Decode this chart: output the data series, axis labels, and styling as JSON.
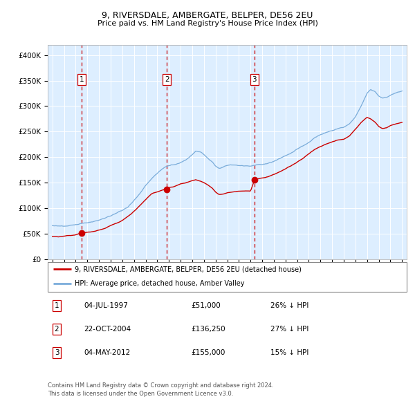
{
  "title1": "9, RIVERSDALE, AMBERGATE, BELPER, DE56 2EU",
  "title2": "Price paid vs. HM Land Registry's House Price Index (HPI)",
  "legend_line1": "9, RIVERSDALE, AMBERGATE, BELPER, DE56 2EU (detached house)",
  "legend_line2": "HPI: Average price, detached house, Amber Valley",
  "footer1": "Contains HM Land Registry data © Crown copyright and database right 2024.",
  "footer2": "This data is licensed under the Open Government Licence v3.0.",
  "sale_dates": [
    "04-JUL-1997",
    "22-OCT-2004",
    "04-MAY-2012"
  ],
  "sale_prices": [
    51000,
    136250,
    155000
  ],
  "sale_hpi_pct": [
    "26% ↓ HPI",
    "27% ↓ HPI",
    "15% ↓ HPI"
  ],
  "sale_years": [
    1997.5,
    2004.83,
    2012.33
  ],
  "vline_color": "#cc0000",
  "dot_color": "#cc0000",
  "hpi_line_color": "#7aacda",
  "price_line_color": "#cc0000",
  "bg_color": "#ddeeff",
  "ylim": [
    0,
    420000
  ],
  "xlim_start": 1994.6,
  "xlim_end": 2025.4,
  "yticks": [
    0,
    50000,
    100000,
    150000,
    200000,
    250000,
    300000,
    350000,
    400000
  ]
}
